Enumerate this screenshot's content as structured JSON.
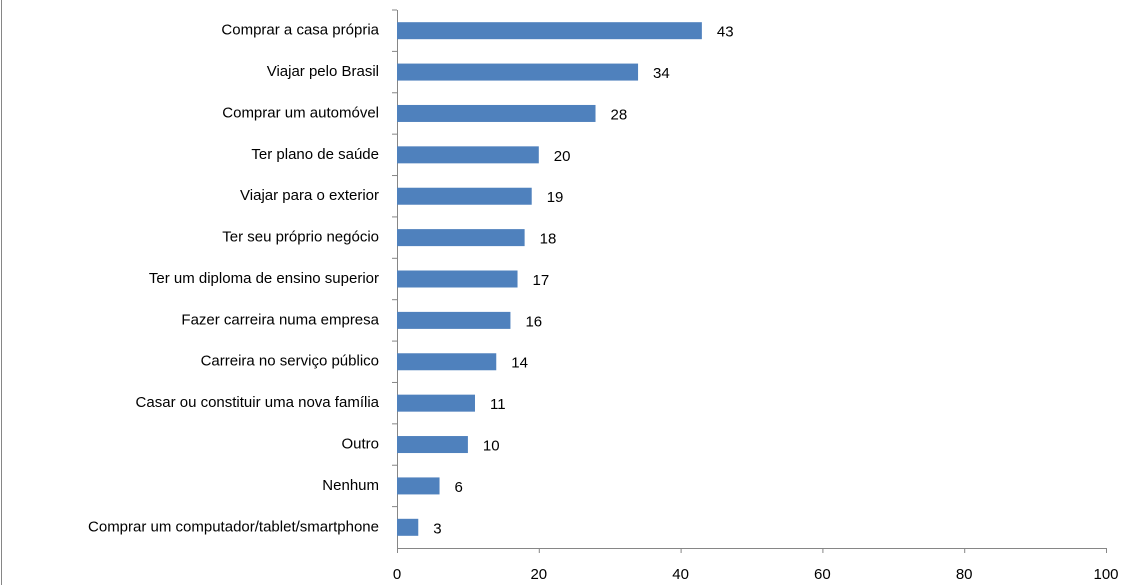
{
  "chart_data": {
    "type": "bar",
    "orientation": "horizontal",
    "categories": [
      "Comprar a casa própria",
      "Viajar pelo Brasil",
      "Comprar um automóvel",
      "Ter plano de saúde",
      "Viajar para o exterior",
      "Ter seu próprio negócio",
      "Ter um diploma de ensino superior",
      "Fazer carreira numa empresa",
      "Carreira no serviço público",
      "Casar ou constituir uma nova família",
      "Outro",
      "Nenhum",
      "Comprar um computador/tablet/smartphone"
    ],
    "values": [
      43,
      34,
      28,
      20,
      19,
      18,
      17,
      16,
      14,
      11,
      10,
      6,
      3
    ],
    "color": "#4f81bd",
    "xlim": [
      0,
      100
    ],
    "xticks": [
      0,
      20,
      40,
      60,
      80,
      100
    ],
    "grid": false
  }
}
